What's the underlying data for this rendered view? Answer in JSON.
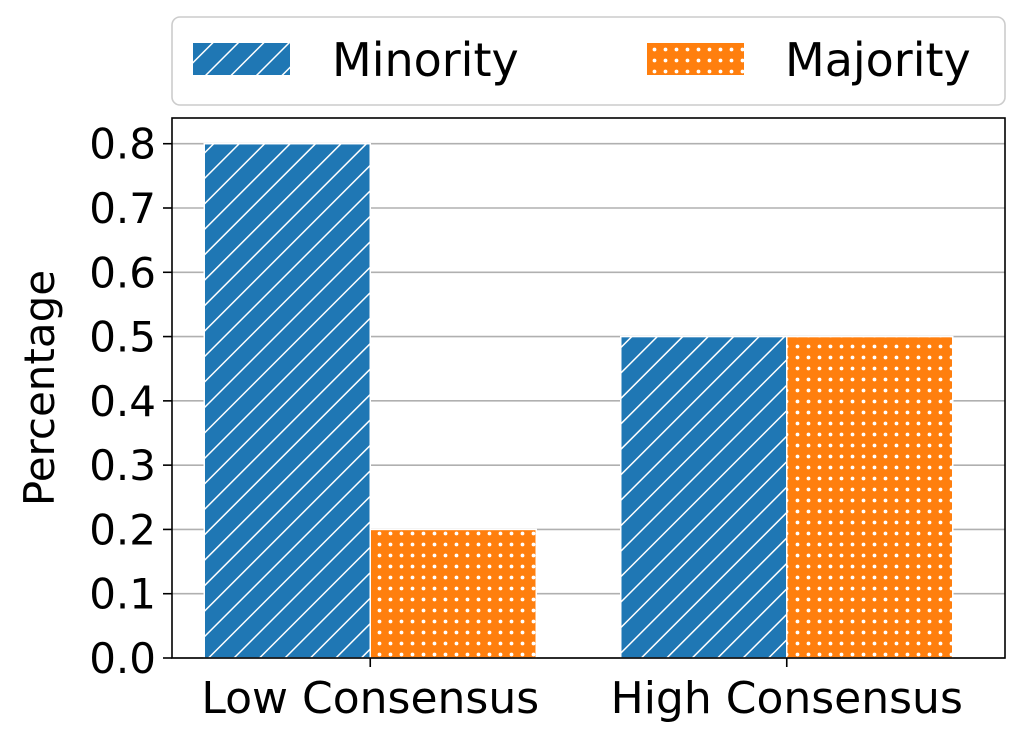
{
  "chart_data": {
    "type": "bar",
    "title": "",
    "xlabel": "",
    "ylabel": "Percentage",
    "categories": [
      "Low Consensus",
      "High Consensus"
    ],
    "series": [
      {
        "name": "Minority",
        "values": [
          0.8,
          0.5
        ],
        "color": "#1f77b4",
        "pattern": "diagonal-hatch"
      },
      {
        "name": "Majority",
        "values": [
          0.2,
          0.5
        ],
        "color": "#ff7f0e",
        "pattern": "dots"
      }
    ],
    "ylim": [
      0,
      0.84
    ],
    "yticks": [
      "0.0",
      "0.1",
      "0.2",
      "0.3",
      "0.4",
      "0.5",
      "0.6",
      "0.7",
      "0.8"
    ],
    "grid": "horizontal",
    "legend": {
      "placement": "top-outside",
      "columns": 2
    }
  }
}
